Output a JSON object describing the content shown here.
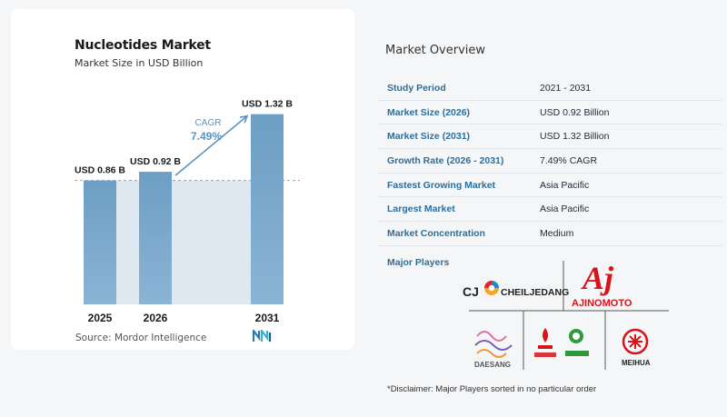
{
  "chart_data": {
    "type": "bar",
    "title": "Nucleotides Market",
    "subtitle": "Market Size in USD Billion",
    "categories": [
      "2025",
      "2026",
      "2031"
    ],
    "values": [
      0.86,
      0.92,
      1.32
    ],
    "data_labels": [
      "USD 0.86 B",
      "USD 0.92 B",
      "USD 1.32 B"
    ],
    "annotation": {
      "label": "CAGR",
      "value": "7.49%"
    },
    "ylim": [
      0,
      1.4
    ],
    "colors": {
      "bar": "#6d9ec4",
      "bar_bottom": "#8ab4d4",
      "band": "#dde8f1",
      "arrow": "#5b93bf",
      "cagr": "#5b93bf"
    },
    "legend": "none",
    "grid": false
  },
  "source": "Source:  Mordor Intelligence",
  "overview": {
    "title": "Market Overview",
    "rows": [
      {
        "label": "Study Period",
        "value": "2021 - 2031"
      },
      {
        "label": "Market Size (2026)",
        "value": "USD 0.92 Billion"
      },
      {
        "label": "Market Size (2031)",
        "value": "USD 1.32 Billion"
      },
      {
        "label": "Growth Rate (2026 - 2031)",
        "value": "7.49% CAGR"
      },
      {
        "label": "Fastest Growing Market",
        "value": "Asia Pacific"
      },
      {
        "label": "Largest Market",
        "value": "Asia Pacific"
      },
      {
        "label": "Market Concentration",
        "value": "Medium"
      }
    ]
  },
  "players": {
    "label": "Major Players",
    "logos": {
      "cj_mark": "CJ",
      "cj_name": "CHEILJEDANG",
      "aji_mark": "Aj",
      "aji_name": "AJINOMOTO",
      "daesang_name": "DAESANG",
      "meihua_name": "MEIHUA"
    }
  },
  "disclaimer": "*Disclaimer: Major Players sorted in no particular order"
}
